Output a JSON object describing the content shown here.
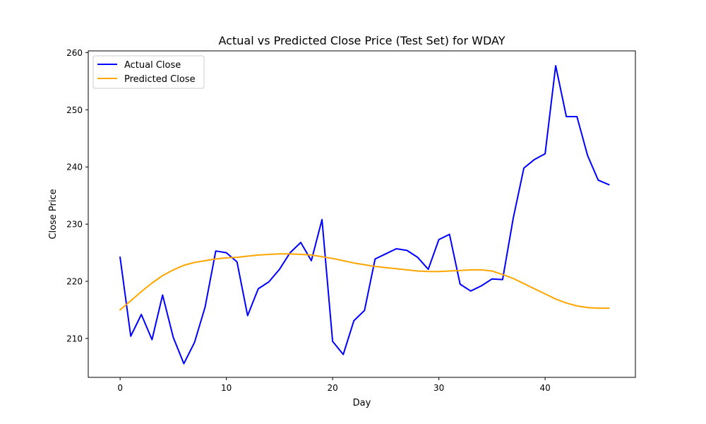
{
  "chart_data": {
    "type": "line",
    "title": "Actual vs Predicted Close Price (Test Set) for WDAY",
    "xlabel": "Day",
    "ylabel": "Close Price",
    "xlim": [
      -3,
      48.5
    ],
    "ylim": [
      203.2,
      260.3
    ],
    "xticks": [
      0,
      10,
      20,
      30,
      40
    ],
    "yticks": [
      210,
      220,
      230,
      240,
      250,
      260
    ],
    "grid": false,
    "legend_position": "top-left",
    "x": [
      0,
      1,
      2,
      3,
      4,
      5,
      6,
      7,
      8,
      9,
      10,
      11,
      12,
      13,
      14,
      15,
      16,
      17,
      18,
      19,
      20,
      21,
      22,
      23,
      24,
      25,
      26,
      27,
      28,
      29,
      30,
      31,
      32,
      33,
      34,
      35,
      36,
      37,
      38,
      39,
      40,
      41,
      42,
      43,
      44,
      45,
      46
    ],
    "series": [
      {
        "name": "Actual Close",
        "color": "#0000ff",
        "values": [
          224.2,
          210.4,
          214.2,
          209.8,
          217.6,
          210.2,
          205.6,
          209.3,
          215.5,
          225.3,
          225.0,
          223.4,
          214.0,
          218.7,
          219.9,
          222.1,
          225.0,
          226.8,
          223.6,
          230.8,
          209.5,
          207.2,
          213.1,
          214.9,
          223.9,
          224.8,
          225.7,
          225.4,
          224.2,
          222.1,
          227.3,
          228.2,
          219.5,
          218.3,
          219.2,
          220.4,
          220.3,
          231.0,
          239.8,
          241.3,
          242.3,
          257.7,
          248.8,
          248.8,
          242.0,
          237.7,
          236.9
        ]
      },
      {
        "name": "Predicted Close",
        "color": "#ffa500",
        "values": [
          215.0,
          216.6,
          218.2,
          219.7,
          221.0,
          222.0,
          222.8,
          223.3,
          223.6,
          223.9,
          224.1,
          224.2,
          224.4,
          224.6,
          224.7,
          224.8,
          224.8,
          224.7,
          224.6,
          224.3,
          224.0,
          223.6,
          223.2,
          222.9,
          222.6,
          222.4,
          222.2,
          222.0,
          221.8,
          221.7,
          221.7,
          221.8,
          221.9,
          222.0,
          222.0,
          221.8,
          221.2,
          220.5,
          219.6,
          218.7,
          217.8,
          216.9,
          216.2,
          215.7,
          215.4,
          215.3,
          215.3
        ]
      }
    ]
  }
}
